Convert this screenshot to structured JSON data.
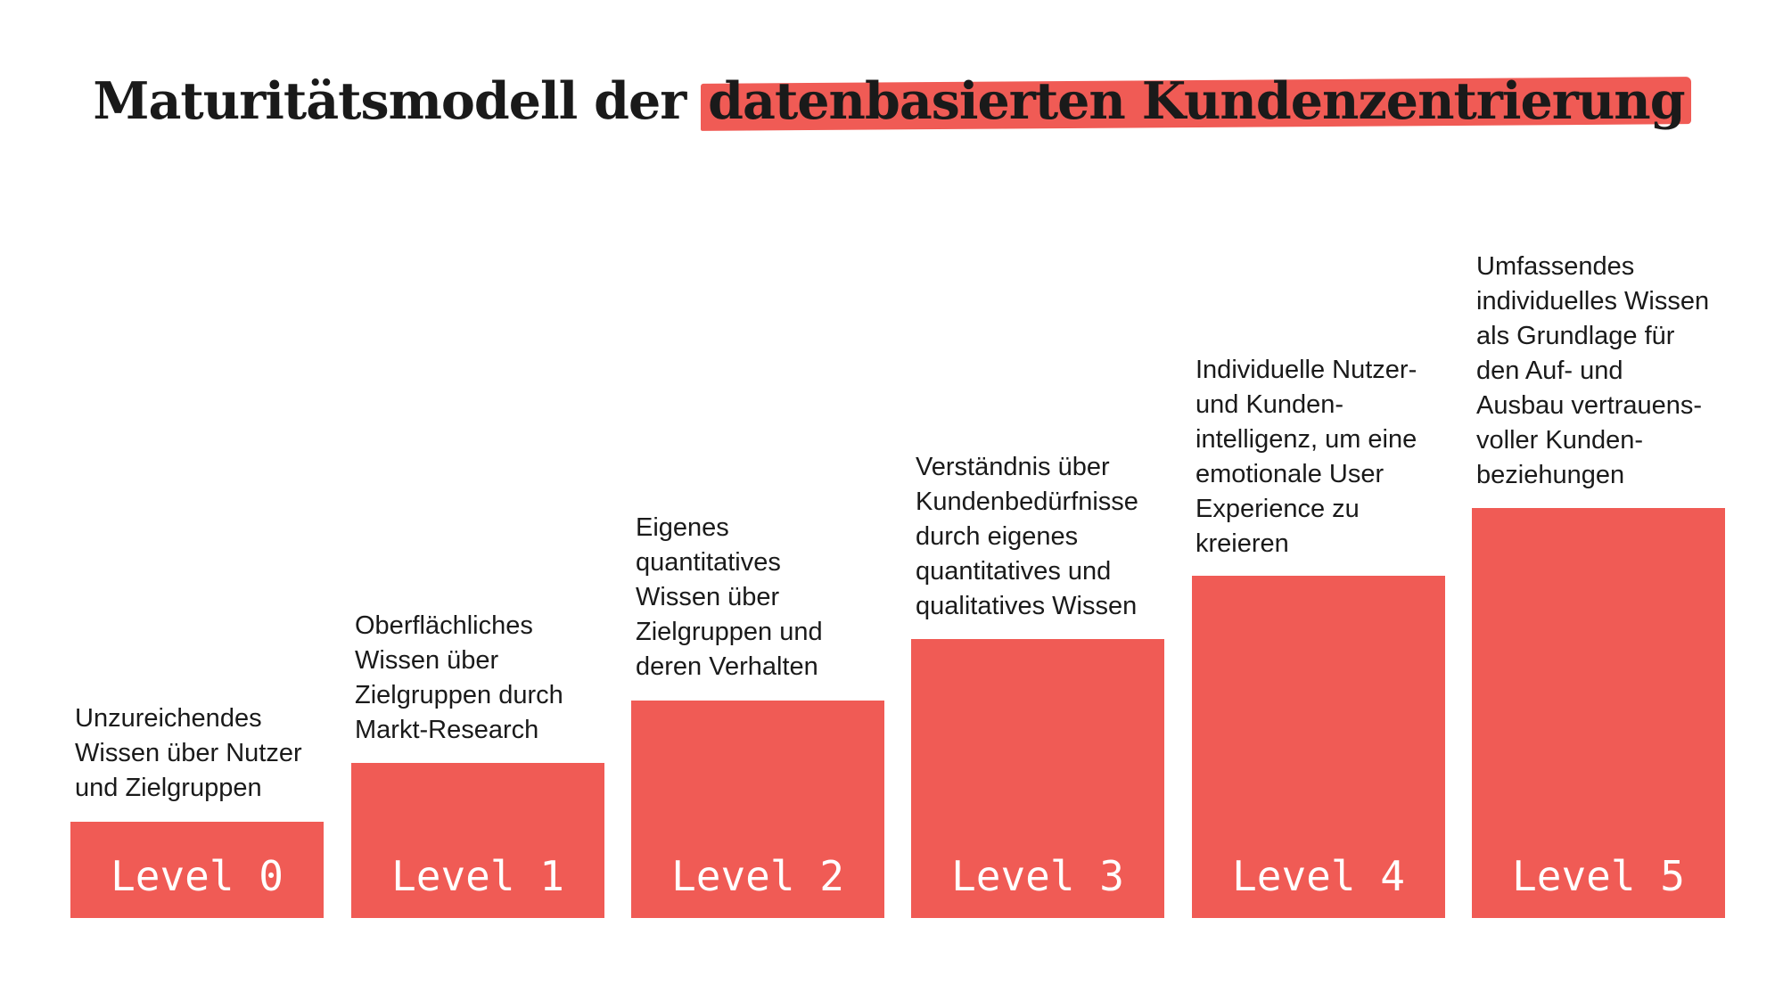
{
  "title": {
    "prefix": "Maturitätsmodell der ",
    "highlight": "datenbasierten Kundenzentrierung"
  },
  "accent_color": "#f05b55",
  "levels": [
    {
      "label": "Level 0",
      "description": "Unzureichendes\nWissen über Nutzer\nund Zielgruppen"
    },
    {
      "label": "Level 1",
      "description": "Oberflächliches\nWissen über\nZielgruppen durch\nMarkt-Research"
    },
    {
      "label": "Level 2",
      "description": "Eigenes\nquantitatives\nWissen über\nZielgruppen und\nderen Verhalten"
    },
    {
      "label": "Level 3",
      "description": "Verständnis über\nKundenbedürfnisse\ndurch eigenes\nquantitatives und\nqualitatives Wissen"
    },
    {
      "label": "Level 4",
      "description": "Individuelle Nutzer-\nund Kunden-\nintelligenz, um eine\nemotionale User\nExperience zu\nkreieren"
    },
    {
      "label": "Level 5",
      "description": "Umfassendes\nindividuelles Wissen\nals Grundlage für\nden Auf- und\nAusbau vertrauens-\nvoller Kunden-\nbeziehungen"
    }
  ]
}
